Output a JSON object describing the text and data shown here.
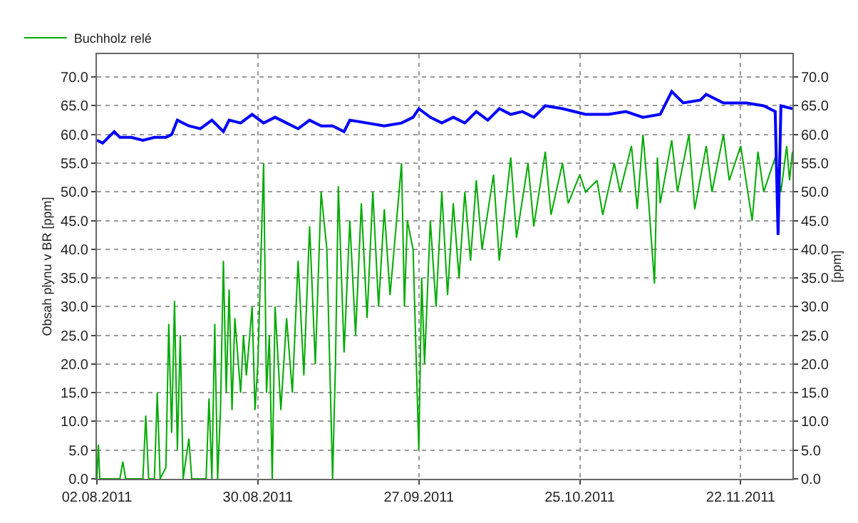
{
  "chart_data": {
    "type": "line",
    "ylabel": "Obsah plynu v BR [ppm]",
    "y2label": "[ppm]",
    "xlim": [
      "2011-08-02",
      "2011-12-01"
    ],
    "xticks": [
      {
        "value": "2011-08-02",
        "label": "02.08.2011"
      },
      {
        "value": "2011-08-30",
        "label": "30.08.2011"
      },
      {
        "value": "2011-09-27",
        "label": "27.09.2011"
      },
      {
        "value": "2011-10-25",
        "label": "25.10.2011"
      },
      {
        "value": "2011-11-22",
        "label": "22.11.2011"
      }
    ],
    "ylim": [
      0,
      74
    ],
    "yticks": [
      {
        "value": 0,
        "label": "0.0"
      },
      {
        "value": 5,
        "label": "5.0"
      },
      {
        "value": 10,
        "label": "10.0"
      },
      {
        "value": 15,
        "label": "15.0"
      },
      {
        "value": 20,
        "label": "20.0"
      },
      {
        "value": 25,
        "label": "25.0"
      },
      {
        "value": 30,
        "label": "30.0"
      },
      {
        "value": 35,
        "label": "35.0"
      },
      {
        "value": 40,
        "label": "40.0"
      },
      {
        "value": 45,
        "label": "45.0"
      },
      {
        "value": 50,
        "label": "50.0"
      },
      {
        "value": 55,
        "label": "55.0"
      },
      {
        "value": 60,
        "label": "60.0"
      },
      {
        "value": 65,
        "label": "65.0"
      },
      {
        "value": 70,
        "label": "70.0"
      }
    ],
    "y2lim": [
      0,
      74
    ],
    "y2ticks": [
      {
        "value": 0,
        "label": "0.0"
      },
      {
        "value": 5,
        "label": "5.0"
      },
      {
        "value": 10,
        "label": "10.0"
      },
      {
        "value": 15,
        "label": "15.0"
      },
      {
        "value": 20,
        "label": "20.0"
      },
      {
        "value": 25,
        "label": "25.0"
      },
      {
        "value": 30,
        "label": "30.0"
      },
      {
        "value": 35,
        "label": "35.0"
      },
      {
        "value": 40,
        "label": "40.0"
      },
      {
        "value": 45,
        "label": "45.0"
      },
      {
        "value": 50,
        "label": "50.0"
      },
      {
        "value": 55,
        "label": "55.0"
      },
      {
        "value": 60,
        "label": "60.0"
      },
      {
        "value": 65,
        "label": "65.0"
      },
      {
        "value": 70,
        "label": "70.0"
      }
    ],
    "grid": true,
    "legend": "top left",
    "series": [
      {
        "name": "Buchholz relé",
        "color": "#00aa00",
        "x": [
          "2011-08-02",
          "2011-08-02T06:00",
          "2011-08-02T12:00",
          "2011-08-06",
          "2011-08-06T12:00",
          "2011-08-07",
          "2011-08-10",
          "2011-08-10T12:00",
          "2011-08-11",
          "2011-08-12",
          "2011-08-12T12:00",
          "2011-08-13",
          "2011-08-14",
          "2011-08-14T12:00",
          "2011-08-15",
          "2011-08-15T12:00",
          "2011-08-16",
          "2011-08-16T12:00",
          "2011-08-17",
          "2011-08-18",
          "2011-08-18T12:00",
          "2011-08-21",
          "2011-08-21T12:00",
          "2011-08-22",
          "2011-08-22T12:00",
          "2011-08-23",
          "2011-08-23T12:00",
          "2011-08-24",
          "2011-08-24T12:00",
          "2011-08-25",
          "2011-08-25T12:00",
          "2011-08-26",
          "2011-08-27",
          "2011-08-27T12:00",
          "2011-08-28",
          "2011-08-29",
          "2011-08-29T12:00",
          "2011-08-30",
          "2011-08-31",
          "2011-08-31T12:00",
          "2011-09-01",
          "2011-09-01T12:00",
          "2011-09-02",
          "2011-09-03",
          "2011-09-04",
          "2011-09-05",
          "2011-09-06",
          "2011-09-07",
          "2011-09-08",
          "2011-09-09",
          "2011-09-10",
          "2011-09-11",
          "2011-09-12",
          "2011-09-12T12:00",
          "2011-09-13",
          "2011-09-14",
          "2011-09-15",
          "2011-09-16",
          "2011-09-17",
          "2011-09-18",
          "2011-09-19",
          "2011-09-20",
          "2011-09-21",
          "2011-09-22",
          "2011-09-24",
          "2011-09-24T12:00",
          "2011-09-25",
          "2011-09-26",
          "2011-09-27",
          "2011-09-27T12:00",
          "2011-09-28",
          "2011-09-29",
          "2011-09-30",
          "2011-10-01",
          "2011-10-02",
          "2011-10-03",
          "2011-10-04",
          "2011-10-05",
          "2011-10-06",
          "2011-10-07",
          "2011-10-08",
          "2011-10-10",
          "2011-10-11",
          "2011-10-13",
          "2011-10-14",
          "2011-10-16",
          "2011-10-17",
          "2011-10-19",
          "2011-10-20",
          "2011-10-22",
          "2011-10-23",
          "2011-10-25",
          "2011-10-26",
          "2011-10-28",
          "2011-10-29",
          "2011-10-31",
          "2011-11-01",
          "2011-11-03",
          "2011-11-04",
          "2011-11-05",
          "2011-11-06",
          "2011-11-07",
          "2011-11-07T12:00",
          "2011-11-08",
          "2011-11-10",
          "2011-11-11",
          "2011-11-13",
          "2011-11-14",
          "2011-11-16",
          "2011-11-17",
          "2011-11-19",
          "2011-11-20",
          "2011-11-22",
          "2011-11-24",
          "2011-11-25",
          "2011-11-26",
          "2011-11-28",
          "2011-11-29",
          "2011-11-30",
          "2011-11-30T12:00",
          "2011-12-01"
        ],
        "values": [
          0,
          6,
          0,
          0,
          3,
          0,
          0,
          11,
          0,
          0,
          15,
          0,
          2,
          27,
          8,
          31,
          5,
          25,
          0,
          7,
          0,
          0,
          14,
          0,
          27,
          0,
          12,
          38,
          15,
          33,
          12,
          28,
          15,
          25,
          18,
          30,
          12,
          20,
          55,
          15,
          25,
          0,
          30,
          12,
          28,
          15,
          38,
          18,
          44,
          20,
          50,
          40,
          0,
          20,
          51,
          22,
          45,
          25,
          48,
          28,
          50,
          30,
          47,
          32,
          55,
          30,
          45,
          40,
          5,
          35,
          20,
          45,
          30,
          50,
          32,
          48,
          35,
          50,
          38,
          52,
          40,
          53,
          38,
          56,
          42,
          55,
          44,
          57,
          46,
          55,
          48,
          53,
          50,
          52,
          46,
          55,
          50,
          58,
          47,
          60,
          48,
          34,
          56,
          48,
          59,
          50,
          60,
          47,
          58,
          50,
          60,
          52,
          58,
          45,
          57,
          50,
          56,
          50,
          58,
          52,
          57
        ]
      },
      {
        "color": "#0000ff",
        "axis": "y2",
        "x": [
          "2011-08-02",
          "2011-08-03",
          "2011-08-04",
          "2011-08-05",
          "2011-08-06",
          "2011-08-08",
          "2011-08-10",
          "2011-08-12",
          "2011-08-14",
          "2011-08-15",
          "2011-08-16",
          "2011-08-18",
          "2011-08-20",
          "2011-08-22",
          "2011-08-24",
          "2011-08-25",
          "2011-08-27",
          "2011-08-29",
          "2011-08-31",
          "2011-09-02",
          "2011-09-04",
          "2011-09-06",
          "2011-09-08",
          "2011-09-10",
          "2011-09-12",
          "2011-09-14",
          "2011-09-15",
          "2011-09-18",
          "2011-09-21",
          "2011-09-24",
          "2011-09-26",
          "2011-09-27",
          "2011-09-29",
          "2011-10-01",
          "2011-10-03",
          "2011-10-05",
          "2011-10-07",
          "2011-10-09",
          "2011-10-11",
          "2011-10-13",
          "2011-10-15",
          "2011-10-17",
          "2011-10-19",
          "2011-10-22",
          "2011-10-26",
          "2011-10-30",
          "2011-11-02",
          "2011-11-05",
          "2011-11-08",
          "2011-11-10",
          "2011-11-12",
          "2011-11-15",
          "2011-11-16",
          "2011-11-19",
          "2011-11-23",
          "2011-11-26",
          "2011-11-28",
          "2011-11-28T12:00",
          "2011-11-29",
          "2011-12-01"
        ],
        "values": [
          59,
          58.5,
          59.5,
          60.5,
          59.5,
          59.5,
          59,
          59.5,
          59.5,
          60,
          62.5,
          61.5,
          61,
          62.5,
          60.5,
          62.5,
          62,
          63.5,
          62,
          63,
          62,
          61,
          62.5,
          61.5,
          61.5,
          60.5,
          62.5,
          62,
          61.5,
          62,
          63,
          64.5,
          63,
          62,
          63,
          62,
          64,
          62.5,
          64.5,
          63.5,
          64,
          63,
          65,
          64.5,
          63.5,
          63.5,
          64,
          63,
          63.5,
          67.5,
          65.5,
          66,
          67,
          65.5,
          65.5,
          65,
          64,
          42.5,
          65,
          64.5
        ]
      }
    ]
  }
}
